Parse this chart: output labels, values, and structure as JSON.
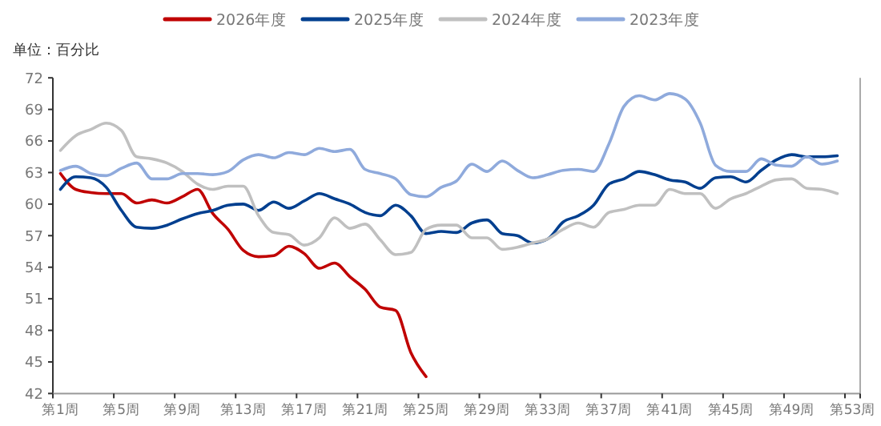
{
  "chart_data": {
    "type": "line",
    "ylabel": "单位：百分比",
    "categories": [
      "第1周",
      null,
      null,
      null,
      "第5周",
      null,
      null,
      null,
      "第9周",
      null,
      null,
      null,
      "第13周",
      null,
      null,
      null,
      "第17周",
      null,
      null,
      null,
      "第21周",
      null,
      null,
      null,
      "第25周",
      null,
      null,
      null,
      "第29周",
      null,
      null,
      null,
      "第33周",
      null,
      null,
      null,
      "第37周",
      null,
      null,
      null,
      "第41周",
      null,
      null,
      null,
      "第45周",
      null,
      null,
      null,
      "第49周",
      null,
      null,
      null,
      "第53周"
    ],
    "ylim": [
      42,
      72
    ],
    "yticks": [
      42,
      45,
      48,
      51,
      54,
      57,
      60,
      63,
      66,
      69,
      72
    ],
    "legend": "top",
    "grid": false,
    "marker": "none",
    "line_style": "solid",
    "series": [
      {
        "name": "2026年度",
        "color": "#c00000",
        "values": [
          62.9,
          61.4,
          61.1,
          61.0,
          61.0,
          60.1,
          60.4,
          60.1,
          60.7,
          61.4,
          59.1,
          57.6,
          55.6,
          55.0,
          55.1,
          56.0,
          55.3,
          53.9,
          54.4,
          53.1,
          51.9,
          50.2,
          49.9,
          45.9,
          43.6,
          null,
          null,
          null,
          null,
          null,
          null,
          null,
          null,
          null,
          null,
          null,
          null,
          null,
          null,
          null,
          null,
          null,
          null,
          null,
          null,
          null,
          null,
          null,
          null,
          null,
          null,
          null,
          null
        ]
      },
      {
        "name": "2025年度",
        "color": "#003f8f",
        "values": [
          61.4,
          62.6,
          62.5,
          61.6,
          59.4,
          57.8,
          57.7,
          58.0,
          58.6,
          59.1,
          59.4,
          59.9,
          60.0,
          59.4,
          60.2,
          59.6,
          60.3,
          61.0,
          60.5,
          60.0,
          59.2,
          58.9,
          59.9,
          58.9,
          57.2,
          57.4,
          57.3,
          58.2,
          58.5,
          57.2,
          57.0,
          56.3,
          56.7,
          58.3,
          58.9,
          59.9,
          61.9,
          62.4,
          63.1,
          62.8,
          62.3,
          62.1,
          61.5,
          62.5,
          62.6,
          62.1,
          63.2,
          64.2,
          64.7,
          64.5,
          64.5,
          64.6,
          null
        ]
      },
      {
        "name": "2024年度",
        "color": "#c0c0c0",
        "values": [
          65.1,
          66.5,
          67.1,
          67.7,
          67.0,
          64.5,
          64.3,
          63.9,
          63.1,
          61.9,
          61.4,
          61.7,
          61.7,
          58.9,
          57.3,
          57.1,
          56.1,
          56.8,
          58.7,
          57.7,
          58.1,
          56.6,
          55.2,
          55.4,
          57.6,
          58.0,
          58.0,
          56.8,
          56.8,
          55.7,
          55.9,
          56.3,
          56.7,
          57.6,
          58.2,
          57.8,
          59.2,
          59.5,
          59.9,
          59.9,
          61.4,
          61.0,
          61.0,
          59.6,
          60.5,
          61.0,
          61.7,
          62.3,
          62.4,
          61.5,
          61.4,
          61.0,
          null
        ]
      },
      {
        "name": "2023年度",
        "color": "#8faadc",
        "values": [
          63.2,
          63.6,
          62.9,
          62.7,
          63.4,
          63.9,
          62.4,
          62.4,
          62.9,
          62.9,
          62.8,
          63.1,
          64.2,
          64.7,
          64.4,
          64.9,
          64.7,
          65.3,
          65.0,
          65.2,
          63.3,
          62.9,
          62.4,
          60.9,
          60.7,
          61.6,
          62.2,
          63.8,
          63.1,
          64.1,
          63.2,
          62.5,
          62.8,
          63.2,
          63.3,
          63.1,
          65.7,
          69.3,
          70.3,
          69.9,
          70.5,
          70.0,
          67.7,
          63.7,
          63.1,
          63.1,
          64.3,
          63.7,
          63.6,
          64.5,
          63.8,
          64.1,
          null
        ]
      }
    ]
  }
}
